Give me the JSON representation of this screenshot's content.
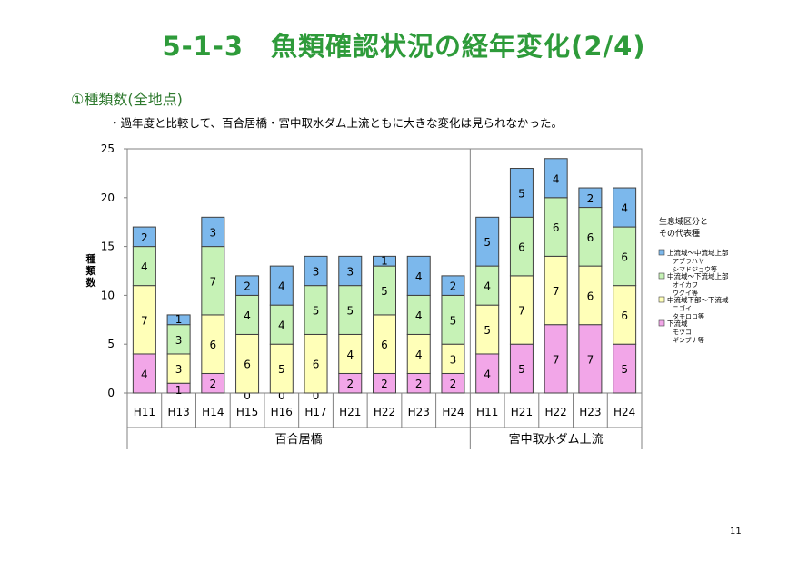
{
  "slide": {
    "title": "5-1-3　魚類確認状況の経年変化(2/4)",
    "section": "①種類数(全地点)",
    "note": "・過年度と比較して、百合居橋・宮中取水ダム上流ともに大きな変化は見られなかった。",
    "page_number": "11"
  },
  "chart_data": {
    "type": "bar",
    "stacked": true,
    "ylabel": "種類数",
    "ylim": [
      0,
      25
    ],
    "yticks": [
      0,
      5,
      10,
      15,
      20,
      25
    ],
    "grid": false,
    "legend_position": "right",
    "legend_title": [
      "生息域区分と",
      "その代表種"
    ],
    "groups": [
      {
        "name": "百合居橋",
        "categories": [
          "H11",
          "H13",
          "H14",
          "H15",
          "H16",
          "H17",
          "H21",
          "H22",
          "H23",
          "H24"
        ]
      },
      {
        "name": "宮中取水ダム上流",
        "categories": [
          "H11",
          "H21",
          "H22",
          "H23",
          "H24"
        ]
      }
    ],
    "categories": [
      "H11",
      "H13",
      "H14",
      "H15",
      "H16",
      "H17",
      "H21",
      "H22",
      "H23",
      "H24",
      "H11",
      "H21",
      "H22",
      "H23",
      "H24"
    ],
    "series": [
      {
        "name": "下流域",
        "species": [
          "モツゴ",
          "ギンブナ等"
        ],
        "color": "#f2a6e8",
        "values": [
          4,
          1,
          2,
          0,
          0,
          0,
          2,
          2,
          2,
          2,
          4,
          5,
          7,
          7,
          5
        ]
      },
      {
        "name": "中流域下部～下流域",
        "species": [
          "ニゴイ",
          "タモロコ等"
        ],
        "color": "#ffffb8",
        "values": [
          7,
          3,
          6,
          6,
          5,
          6,
          4,
          6,
          4,
          3,
          5,
          7,
          7,
          6,
          6
        ]
      },
      {
        "name": "中流域～下流域上部",
        "species": [
          "オイカワ",
          "ウグイ等"
        ],
        "color": "#c6f2b6",
        "values": [
          4,
          3,
          7,
          4,
          4,
          5,
          5,
          5,
          4,
          5,
          4,
          6,
          6,
          6,
          6
        ]
      },
      {
        "name": "上流域～中流域上部",
        "species": [
          "アブラハヤ",
          "シマドジョウ等"
        ],
        "color": "#7cb8ec",
        "values": [
          2,
          1,
          3,
          2,
          4,
          3,
          3,
          1,
          4,
          2,
          5,
          5,
          4,
          2,
          4
        ]
      }
    ]
  }
}
